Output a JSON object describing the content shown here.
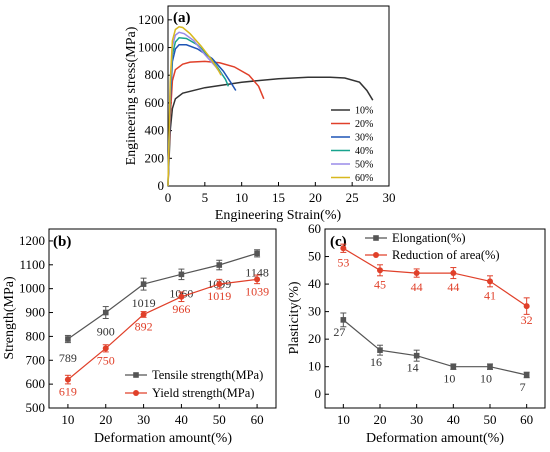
{
  "chart_data": [
    {
      "panel": "(a)",
      "type": "line",
      "xlabel": "Engineering Strain(%)",
      "ylabel": "Engineering stress(MPa)",
      "xlim": [
        0,
        30
      ],
      "ylim": [
        0,
        1300
      ],
      "xticks": [
        "0",
        "5",
        "10",
        "15",
        "20",
        "25",
        "30"
      ],
      "yticks": [
        "0",
        "200",
        "400",
        "600",
        "800",
        "1000",
        "1200"
      ],
      "legend_position": "right",
      "series": [
        {
          "name": "10%",
          "color": "#333333",
          "x": [
            0,
            0.3,
            0.6,
            1.0,
            2.0,
            5.0,
            10.0,
            15.0,
            19.0,
            22.0,
            24.0,
            26.0,
            27.0,
            27.8
          ],
          "y": [
            0,
            400,
            560,
            630,
            670,
            710,
            750,
            775,
            785,
            785,
            780,
            750,
            690,
            620
          ]
        },
        {
          "name": "20%",
          "color": "#e0402a",
          "x": [
            0,
            0.3,
            0.6,
            1.0,
            2.0,
            3.0,
            5.0,
            7.0,
            9.0,
            11.0,
            12.3,
            13.0
          ],
          "y": [
            0,
            500,
            760,
            840,
            880,
            895,
            900,
            890,
            860,
            800,
            720,
            630
          ]
        },
        {
          "name": "30%",
          "color": "#1f55b5",
          "x": [
            0,
            0.3,
            0.6,
            1.0,
            1.5,
            2.5,
            4.0,
            6.0,
            7.5,
            8.5,
            9.2
          ],
          "y": [
            0,
            600,
            900,
            990,
            1020,
            1020,
            990,
            920,
            830,
            750,
            690
          ]
        },
        {
          "name": "40%",
          "color": "#18a38e",
          "x": [
            0,
            0.3,
            0.6,
            1.0,
            1.5,
            2.5,
            4.0,
            5.5,
            6.8,
            7.8,
            8.2
          ],
          "y": [
            0,
            650,
            950,
            1040,
            1070,
            1065,
            1020,
            940,
            850,
            770,
            720
          ]
        },
        {
          "name": "50%",
          "color": "#9a8be8",
          "x": [
            0,
            0.3,
            0.6,
            1.0,
            1.5,
            2.2,
            3.5,
            5.0,
            6.5,
            7.3
          ],
          "y": [
            0,
            700,
            1010,
            1090,
            1110,
            1100,
            1050,
            950,
            860,
            800
          ]
        },
        {
          "name": "60%",
          "color": "#d8b81e",
          "x": [
            0,
            0.3,
            0.6,
            1.0,
            1.5,
            2.0,
            3.0,
            4.5,
            5.8,
            6.8,
            7.2
          ],
          "y": [
            0,
            750,
            1050,
            1130,
            1150,
            1145,
            1100,
            1010,
            920,
            840,
            800
          ]
        }
      ]
    },
    {
      "panel": "(b)",
      "type": "line",
      "xlabel": "Deformation amount(%)",
      "ylabel": "Strength(MPa)",
      "xlim": [
        5,
        65
      ],
      "ylim": [
        500,
        1250
      ],
      "categories": [
        10,
        20,
        30,
        40,
        50,
        60
      ],
      "xticks": [
        "10",
        "20",
        "30",
        "40",
        "50",
        "60"
      ],
      "yticks": [
        "500",
        "600",
        "700",
        "800",
        "900",
        "1000",
        "1100",
        "1200"
      ],
      "legend_position": "bottom-right",
      "series": [
        {
          "name": "Tensile strength(MPa)",
          "color": "#555555",
          "marker": "square",
          "values": [
            789,
            900,
            1019,
            1060,
            1099,
            1148
          ],
          "labels": [
            "789",
            "900",
            "1019",
            "1060",
            "1099",
            "1148"
          ],
          "errors": [
            15,
            25,
            25,
            22,
            20,
            15
          ]
        },
        {
          "name": "Yield strength(MPa)",
          "color": "#e0402a",
          "marker": "circle",
          "values": [
            619,
            750,
            892,
            966,
            1019,
            1039
          ],
          "labels": [
            "619",
            "750",
            "892",
            "966",
            "1019",
            "1039"
          ],
          "errors": [
            18,
            15,
            12,
            20,
            20,
            18
          ]
        }
      ]
    },
    {
      "panel": "(c)",
      "type": "line",
      "xlabel": "Deformation amount(%)",
      "ylabel": "Plasticity(%)",
      "xlim": [
        5,
        65
      ],
      "ylim": [
        -5,
        60
      ],
      "categories": [
        10,
        20,
        30,
        40,
        50,
        60
      ],
      "xticks": [
        "10",
        "20",
        "30",
        "40",
        "50",
        "60"
      ],
      "yticks": [
        "0",
        "10",
        "20",
        "30",
        "40",
        "50",
        "60"
      ],
      "legend_position": "top",
      "series": [
        {
          "name": "Elongation(%)",
          "color": "#555555",
          "marker": "square",
          "values": [
            27,
            16,
            14,
            10,
            10,
            7
          ],
          "labels": [
            "27",
            "16",
            "14",
            "10",
            "10",
            "7"
          ],
          "errors": [
            2.5,
            1.8,
            2,
            1,
            1,
            1
          ]
        },
        {
          "name": "Reduction of area(%)",
          "color": "#e0402a",
          "marker": "circle",
          "values": [
            53,
            45,
            44,
            44,
            41,
            32
          ],
          "labels": [
            "53",
            "45",
            "44",
            "44",
            "41",
            "32"
          ],
          "errors": [
            1.5,
            2,
            1.5,
            2,
            2,
            3
          ]
        }
      ]
    }
  ]
}
